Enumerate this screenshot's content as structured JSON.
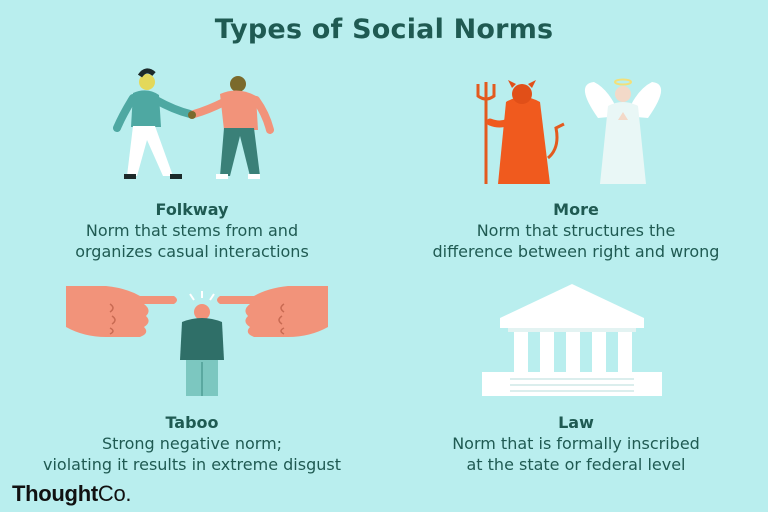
{
  "title": "Types of Social Norms",
  "cards": [
    {
      "name": "Folkway",
      "desc_line1": "Norm that stems from and",
      "desc_line2": "organizes casual interactions",
      "illustration": "two-people-handshake"
    },
    {
      "name": "More",
      "desc_line1": "Norm that structures the",
      "desc_line2": "difference between right and wrong",
      "illustration": "devil-and-angle"
    },
    {
      "name": "Taboo",
      "desc_line1": "Strong negative norm;",
      "desc_line2": "violating it results in extreme disgust",
      "illustration": "pointing-hands-at-person"
    },
    {
      "name": "Law",
      "desc_line1": "Norm that is formally inscribed",
      "desc_line2": "at the state or federal level",
      "illustration": "courthouse-columns"
    }
  ],
  "brand": {
    "part1": "Thought",
    "part2": "Co."
  },
  "colors": {
    "background": "#b9eeee",
    "text": "#1f5a52"
  }
}
